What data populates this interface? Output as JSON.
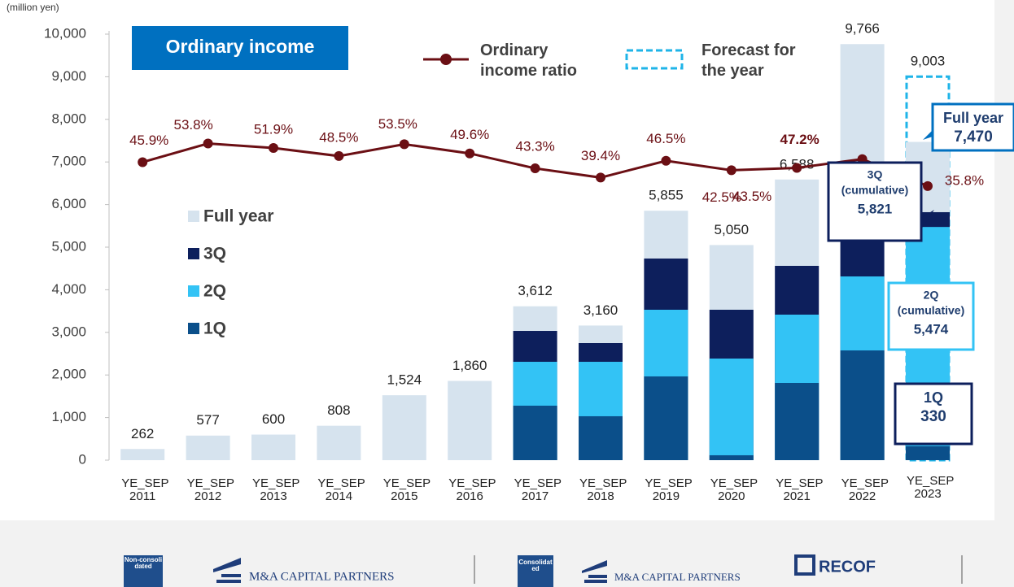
{
  "chart_data": {
    "type": "bar",
    "title": "Ordinary income",
    "unit_label": "(million yen)",
    "categories": [
      "YE_SEP 2011",
      "YE_SEP 2012",
      "YE_SEP 2013",
      "YE_SEP 2014",
      "YE_SEP 2015",
      "YE_SEP 2016",
      "YE_SEP 2017",
      "YE_SEP 2018",
      "YE_SEP 2019",
      "YE_SEP 2020",
      "YE_SEP 2021",
      "YE_SEP 2022",
      "YE_SEP 2023"
    ],
    "ylim": [
      0,
      10000
    ],
    "yticks": [
      0,
      {
        "value": 1000,
        "label": "1,000"
      },
      {
        "value": 2000,
        "label": "2,000"
      },
      {
        "value": 3000,
        "label": "3,000"
      },
      {
        "value": 4000,
        "label": "4,000"
      },
      {
        "value": 5000,
        "label": "5,000"
      },
      {
        "value": 6000,
        "label": "6,000"
      },
      {
        "value": 7000,
        "label": "7,000"
      },
      {
        "value": 8000,
        "label": "8,000"
      },
      {
        "value": 9000,
        "label": "9,000"
      },
      {
        "value": 10000,
        "label": "10,000"
      }
    ],
    "y2lim": [
      -80,
      100
    ],
    "series": [
      {
        "name": "Full year",
        "color": "#d6e3ee",
        "callout": [
          "Full year"
        ],
        "values": [
          262,
          577,
          600,
          808,
          1524,
          1860,
          3612,
          3160,
          5855,
          5050,
          6588,
          9766,
          7470
        ],
        "value_labels": [
          "262",
          "577",
          "600",
          "808",
          "1,524",
          "1,860",
          "3,612",
          "3,160",
          "5,855",
          "5,050",
          "6,588",
          "9,766",
          "7,470"
        ]
      },
      {
        "name": "3Q",
        "color": "#0d1f5c",
        "callout": [
          "3Q",
          "(cumulative)"
        ],
        "values": [
          null,
          null,
          null,
          null,
          null,
          null,
          3034,
          2748,
          4733,
          3531,
          4561,
          6813,
          5821
        ],
        "value_labels": [
          null,
          null,
          null,
          null,
          null,
          null,
          null,
          null,
          null,
          null,
          null,
          null,
          "5,821"
        ]
      },
      {
        "name": "2Q",
        "color": "#33c3f5",
        "callout": [
          "2Q",
          "(cumulative)"
        ],
        "values": [
          null,
          null,
          null,
          null,
          null,
          null,
          2309,
          2309,
          3531,
          2385,
          3416,
          4313,
          5474
        ],
        "value_labels": [
          null,
          null,
          null,
          null,
          null,
          null,
          null,
          null,
          null,
          null,
          null,
          null,
          "5,474"
        ]
      },
      {
        "name": "1Q",
        "color": "#0b4f8a",
        "callout": [
          "1Q"
        ],
        "values": [
          null,
          null,
          null,
          null,
          null,
          null,
          1279,
          1031,
          1966,
          115,
          1813,
          2576,
          330
        ],
        "value_labels": [
          null,
          null,
          null,
          null,
          null,
          null,
          null,
          null,
          null,
          null,
          null,
          null,
          "330"
        ]
      },
      {
        "name": "Ordinary income ratio",
        "color": "#6b0f14",
        "axis": "y2",
        "values": [
          45.9,
          53.8,
          51.9,
          48.5,
          53.5,
          49.6,
          43.3,
          39.4,
          46.5,
          42.5,
          43.5,
          47.2,
          35.8
        ],
        "value_labels": [
          "45.9%",
          "53.8%",
          "51.9%",
          "48.5%",
          "53.5%",
          "49.6%",
          "43.3%",
          "39.4%",
          "46.5%",
          "42.5%",
          "43.5%",
          "47.2%",
          "35.8%"
        ]
      }
    ],
    "forecast": {
      "name": "Forecast for the year",
      "color": "#1fb4e8",
      "value": 9003,
      "value_label": "9,003"
    }
  },
  "footer": {
    "non_consolidated": "Non-consolidated",
    "consolidated": "Consolidated",
    "company": "M&A CAPITAL PARTNERS",
    "company2": "RECOF"
  }
}
